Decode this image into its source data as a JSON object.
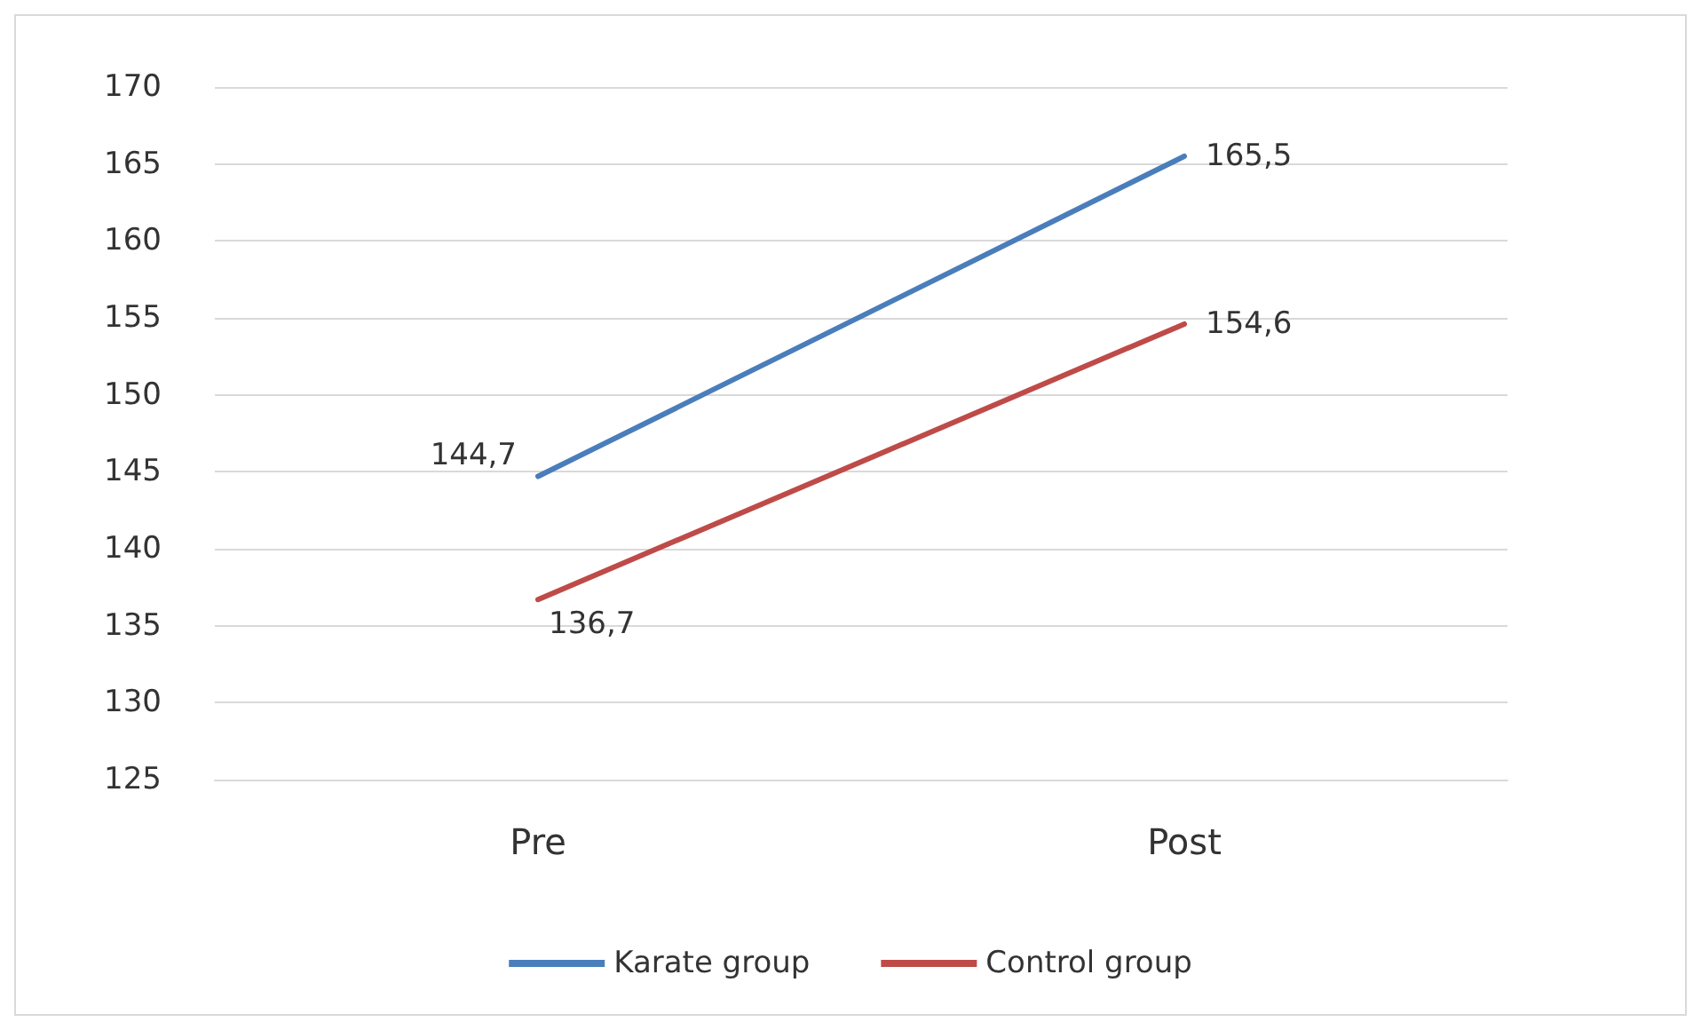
{
  "chart_data": {
    "type": "line",
    "categories": [
      "Pre",
      "Post"
    ],
    "series": [
      {
        "name": "Karate group",
        "color": "#4a7ebb",
        "values": [
          144.7,
          165.5
        ],
        "value_labels": [
          "144,7",
          "165,5"
        ]
      },
      {
        "name": "Control group",
        "color": "#be4b48",
        "values": [
          136.7,
          154.6
        ],
        "value_labels": [
          "136,7",
          "154,6"
        ]
      }
    ],
    "ylim": [
      125,
      170
    ],
    "yticks": [
      125,
      130,
      135,
      140,
      145,
      150,
      155,
      160,
      165,
      170
    ],
    "grid": "y",
    "legend": "bottom",
    "marker": "none",
    "line_style": "solid"
  }
}
